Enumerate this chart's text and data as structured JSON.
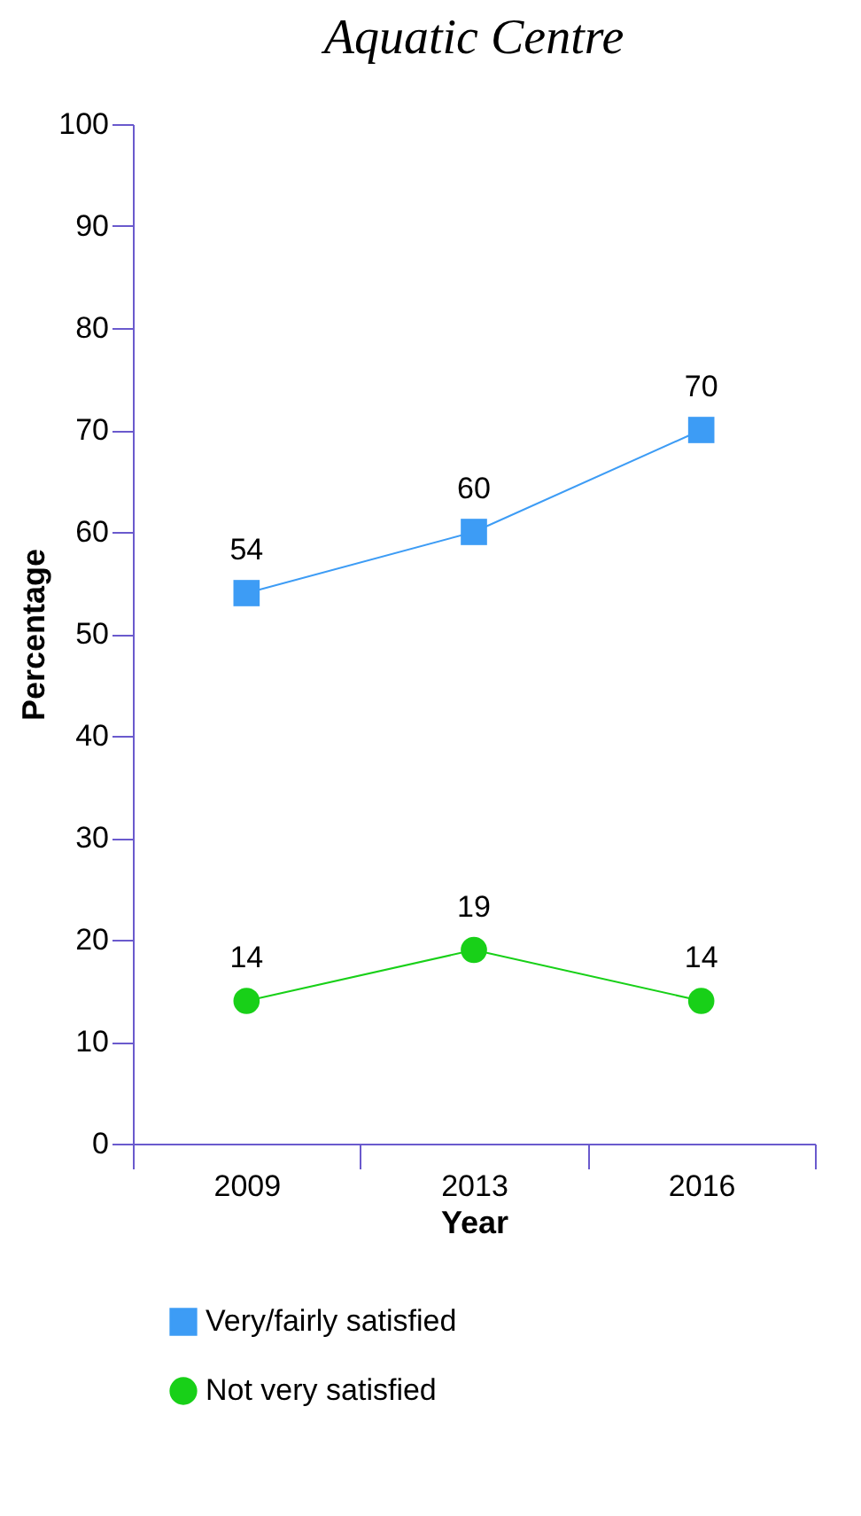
{
  "chart_data": {
    "type": "line",
    "title": "Aquatic Centre",
    "xlabel": "Year",
    "ylabel": "Percentage",
    "categories": [
      "2009",
      "2013",
      "2016"
    ],
    "series": [
      {
        "name": "Very/fairly satisfied",
        "color": "#3d9cf5",
        "marker": "square",
        "values": [
          54,
          60,
          70
        ]
      },
      {
        "name": "Not very satisfied",
        "color": "#18d018",
        "marker": "circle",
        "values": [
          14,
          19,
          14
        ]
      }
    ],
    "ylim": [
      0,
      100
    ],
    "yticks": [
      0,
      10,
      20,
      30,
      40,
      50,
      60,
      70,
      80,
      90,
      100
    ],
    "grid": false,
    "legend": "bottom",
    "data_labels": true
  }
}
